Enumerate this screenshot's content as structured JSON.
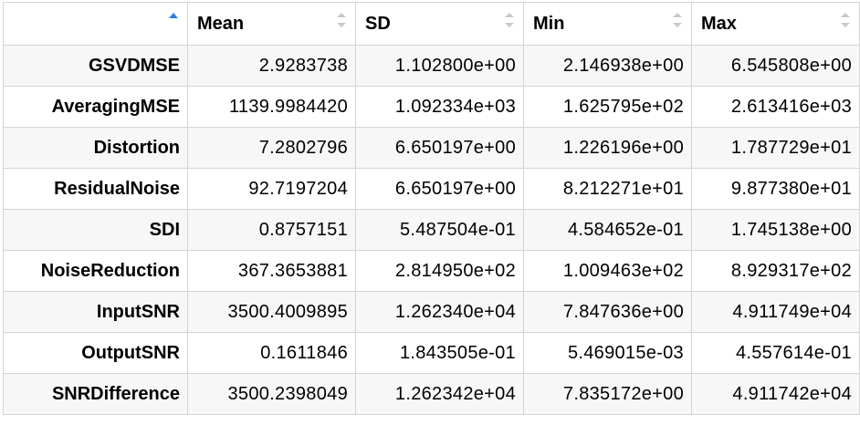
{
  "table": {
    "columns": [
      {
        "label": "",
        "sort": "ascending"
      },
      {
        "label": "Mean",
        "sort": "none"
      },
      {
        "label": "SD",
        "sort": "none"
      },
      {
        "label": "Min",
        "sort": "none"
      },
      {
        "label": "Max",
        "sort": "none"
      }
    ],
    "rows": [
      [
        "GSVDMSE",
        "2.9283738",
        "1.102800e+00",
        "2.146938e+00",
        "6.545808e+00"
      ],
      [
        "AveragingMSE",
        "1139.9984420",
        "1.092334e+03",
        "1.625795e+02",
        "2.613416e+03"
      ],
      [
        "Distortion",
        "7.2802796",
        "6.650197e+00",
        "1.226196e+00",
        "1.787729e+01"
      ],
      [
        "ResidualNoise",
        "92.7197204",
        "6.650197e+00",
        "8.212271e+01",
        "9.877380e+01"
      ],
      [
        "SDI",
        "0.8757151",
        "5.487504e-01",
        "4.584652e-01",
        "1.745138e+00"
      ],
      [
        "NoiseReduction",
        "367.3653881",
        "2.814950e+02",
        "1.009463e+02",
        "8.929317e+02"
      ],
      [
        "InputSNR",
        "3500.4009895",
        "1.262340e+04",
        "7.847636e+00",
        "4.911749e+04"
      ],
      [
        "OutputSNR",
        "0.1611846",
        "1.843505e-01",
        "5.469015e-03",
        "4.557614e-01"
      ],
      [
        "SNRDifference",
        "3500.2398049",
        "1.262342e+04",
        "7.835172e+00",
        "4.911742e+04"
      ]
    ]
  },
  "colors": {
    "sort_active": "#2f7de1",
    "sort_inactive": "#c8c8c8",
    "border": "#d4d4d4",
    "stripe": "#f7f7f7"
  }
}
